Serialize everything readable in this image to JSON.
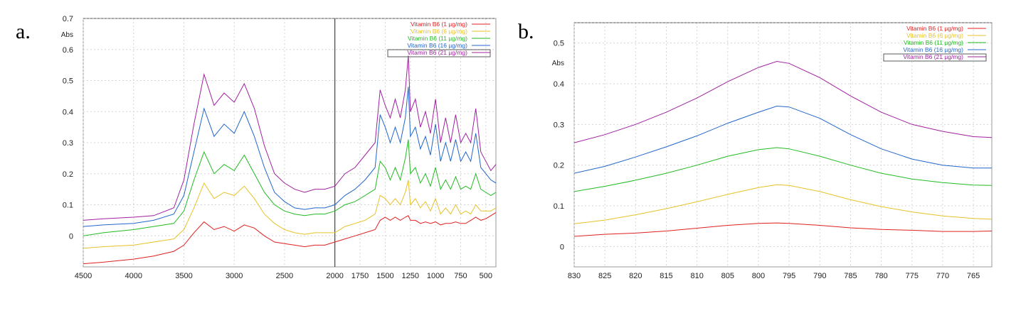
{
  "panels": [
    {
      "letter": "a."
    },
    {
      "letter": "b."
    }
  ],
  "chart_data": [
    {
      "type": "line",
      "ylabel": "Abs",
      "xlim": [
        4500,
        400
      ],
      "ylim": [
        -0.1,
        0.7
      ],
      "xticks": [
        4500,
        4000,
        3500,
        3000,
        2500,
        2000,
        1750,
        1500,
        1250,
        1000,
        750,
        500
      ],
      "yticks": [
        0,
        0.1,
        0.2,
        0.3,
        0.4,
        0.5,
        0.6,
        0.7
      ],
      "x_axis_break": 2000,
      "grid": true,
      "legend_position": "top-right",
      "series": [
        {
          "name": "Vitamin B6 (1 µg/mg)",
          "color": "#e02020",
          "x": [
            4500,
            4300,
            4000,
            3800,
            3600,
            3500,
            3400,
            3300,
            3200,
            3100,
            3000,
            2900,
            2800,
            2700,
            2600,
            2500,
            2400,
            2300,
            2200,
            2100,
            2000,
            1900,
            1800,
            1700,
            1600,
            1550,
            1500,
            1450,
            1400,
            1350,
            1300,
            1270,
            1250,
            1200,
            1150,
            1100,
            1050,
            1000,
            950,
            900,
            850,
            800,
            750,
            700,
            650,
            600,
            550,
            500,
            450,
            400
          ],
          "y": [
            -0.09,
            -0.085,
            -0.075,
            -0.065,
            -0.05,
            -0.03,
            0.01,
            0.045,
            0.02,
            0.03,
            0.015,
            0.035,
            0.025,
            0.0,
            -0.02,
            -0.025,
            -0.03,
            -0.035,
            -0.03,
            -0.03,
            -0.02,
            -0.01,
            0.0,
            0.01,
            0.02,
            0.05,
            0.06,
            0.05,
            0.06,
            0.05,
            0.06,
            0.065,
            0.05,
            0.05,
            0.04,
            0.045,
            0.04,
            0.045,
            0.035,
            0.04,
            0.04,
            0.045,
            0.04,
            0.04,
            0.05,
            0.06,
            0.05,
            0.055,
            0.065,
            0.075
          ]
        },
        {
          "name": "Vitamin B6 (6 µg/mg)",
          "color": "#e6c229",
          "x": [
            4500,
            4300,
            4000,
            3800,
            3600,
            3500,
            3400,
            3300,
            3200,
            3100,
            3000,
            2900,
            2800,
            2700,
            2600,
            2500,
            2400,
            2300,
            2200,
            2100,
            2000,
            1900,
            1800,
            1700,
            1600,
            1550,
            1500,
            1450,
            1400,
            1350,
            1300,
            1270,
            1250,
            1200,
            1150,
            1100,
            1050,
            1000,
            950,
            900,
            850,
            800,
            750,
            700,
            650,
            600,
            550,
            500,
            450,
            400
          ],
          "y": [
            -0.04,
            -0.035,
            -0.03,
            -0.02,
            -0.01,
            0.02,
            0.09,
            0.17,
            0.12,
            0.14,
            0.13,
            0.16,
            0.12,
            0.07,
            0.04,
            0.02,
            0.01,
            0.005,
            0.01,
            0.01,
            0.01,
            0.03,
            0.04,
            0.05,
            0.07,
            0.13,
            0.12,
            0.1,
            0.12,
            0.1,
            0.14,
            0.18,
            0.1,
            0.12,
            0.09,
            0.11,
            0.08,
            0.12,
            0.07,
            0.09,
            0.07,
            0.1,
            0.07,
            0.08,
            0.07,
            0.1,
            0.08,
            0.08,
            0.08,
            0.09
          ]
        },
        {
          "name": "Vitamin B6 (11 µg/mg)",
          "color": "#22bb22",
          "x": [
            4500,
            4300,
            4000,
            3800,
            3600,
            3500,
            3400,
            3300,
            3200,
            3100,
            3000,
            2900,
            2800,
            2700,
            2600,
            2500,
            2400,
            2300,
            2200,
            2100,
            2000,
            1900,
            1800,
            1700,
            1600,
            1550,
            1500,
            1450,
            1400,
            1350,
            1300,
            1270,
            1250,
            1200,
            1150,
            1100,
            1050,
            1000,
            950,
            900,
            850,
            800,
            750,
            700,
            650,
            600,
            550,
            500,
            450,
            400
          ],
          "y": [
            0.0,
            0.01,
            0.02,
            0.03,
            0.04,
            0.08,
            0.18,
            0.27,
            0.2,
            0.23,
            0.21,
            0.26,
            0.2,
            0.14,
            0.1,
            0.08,
            0.07,
            0.065,
            0.07,
            0.07,
            0.08,
            0.1,
            0.11,
            0.13,
            0.15,
            0.24,
            0.22,
            0.18,
            0.22,
            0.18,
            0.25,
            0.31,
            0.2,
            0.22,
            0.17,
            0.2,
            0.16,
            0.22,
            0.15,
            0.18,
            0.15,
            0.19,
            0.15,
            0.16,
            0.15,
            0.2,
            0.15,
            0.14,
            0.13,
            0.14
          ]
        },
        {
          "name": "Vitamin B6 (16 µg/mg)",
          "color": "#2266cc",
          "x": [
            4500,
            4300,
            4000,
            3800,
            3600,
            3500,
            3400,
            3300,
            3200,
            3100,
            3000,
            2900,
            2800,
            2700,
            2600,
            2500,
            2400,
            2300,
            2200,
            2100,
            2000,
            1900,
            1800,
            1700,
            1600,
            1550,
            1500,
            1450,
            1400,
            1350,
            1300,
            1270,
            1250,
            1200,
            1150,
            1100,
            1050,
            1000,
            950,
            900,
            850,
            800,
            750,
            700,
            650,
            600,
            550,
            500,
            450,
            400
          ],
          "y": [
            0.03,
            0.035,
            0.04,
            0.05,
            0.07,
            0.13,
            0.27,
            0.41,
            0.32,
            0.36,
            0.33,
            0.4,
            0.32,
            0.22,
            0.14,
            0.11,
            0.09,
            0.085,
            0.09,
            0.09,
            0.1,
            0.13,
            0.15,
            0.18,
            0.22,
            0.39,
            0.35,
            0.3,
            0.35,
            0.3,
            0.38,
            0.48,
            0.32,
            0.35,
            0.28,
            0.32,
            0.26,
            0.36,
            0.24,
            0.3,
            0.24,
            0.31,
            0.24,
            0.27,
            0.24,
            0.33,
            0.22,
            0.2,
            0.18,
            0.17
          ]
        },
        {
          "name": "Vitamin B6 (21 µg/mg)",
          "color": "#a020a0",
          "x": [
            4500,
            4300,
            4000,
            3800,
            3600,
            3500,
            3400,
            3300,
            3200,
            3100,
            3000,
            2900,
            2800,
            2700,
            2600,
            2500,
            2400,
            2300,
            2200,
            2100,
            2000,
            1900,
            1800,
            1700,
            1600,
            1550,
            1500,
            1450,
            1400,
            1350,
            1300,
            1270,
            1250,
            1200,
            1150,
            1100,
            1050,
            1000,
            950,
            900,
            850,
            800,
            750,
            700,
            650,
            600,
            550,
            500,
            450,
            400
          ],
          "y": [
            0.05,
            0.055,
            0.06,
            0.065,
            0.09,
            0.18,
            0.36,
            0.52,
            0.42,
            0.46,
            0.43,
            0.49,
            0.41,
            0.29,
            0.2,
            0.17,
            0.15,
            0.14,
            0.15,
            0.15,
            0.16,
            0.2,
            0.22,
            0.26,
            0.3,
            0.47,
            0.42,
            0.38,
            0.44,
            0.38,
            0.47,
            0.58,
            0.4,
            0.44,
            0.35,
            0.4,
            0.33,
            0.44,
            0.3,
            0.38,
            0.3,
            0.39,
            0.3,
            0.33,
            0.3,
            0.41,
            0.27,
            0.24,
            0.21,
            0.23
          ]
        }
      ]
    },
    {
      "type": "line",
      "ylabel": "Abs",
      "xlim": [
        830,
        762
      ],
      "ylim": [
        -0.05,
        0.55
      ],
      "xticks": [
        830,
        825,
        820,
        815,
        810,
        805,
        800,
        795,
        790,
        785,
        780,
        775,
        770,
        765
      ],
      "yticks": [
        0,
        0.1,
        0.2,
        0.3,
        0.4,
        0.5
      ],
      "grid": true,
      "legend_position": "top-right",
      "series": [
        {
          "name": "Vitamin B6 (1 µg/mg)",
          "color": "#e02020",
          "x": [
            830,
            825,
            820,
            815,
            810,
            805,
            800,
            797,
            795,
            790,
            785,
            780,
            775,
            770,
            765,
            762
          ],
          "y": [
            0.025,
            0.03,
            0.033,
            0.038,
            0.045,
            0.052,
            0.057,
            0.058,
            0.057,
            0.052,
            0.046,
            0.042,
            0.04,
            0.037,
            0.037,
            0.038
          ]
        },
        {
          "name": "Vitamin B6 (6 µg/mg)",
          "color": "#e6c229",
          "x": [
            830,
            825,
            820,
            815,
            810,
            805,
            800,
            797,
            795,
            790,
            785,
            780,
            775,
            770,
            765,
            762
          ],
          "y": [
            0.056,
            0.065,
            0.078,
            0.093,
            0.11,
            0.128,
            0.145,
            0.152,
            0.15,
            0.135,
            0.115,
            0.098,
            0.085,
            0.075,
            0.069,
            0.067
          ]
        },
        {
          "name": "Vitamin B6 (11 µg/mg)",
          "color": "#22bb22",
          "x": [
            830,
            825,
            820,
            815,
            810,
            805,
            800,
            797,
            795,
            790,
            785,
            780,
            775,
            770,
            765,
            762
          ],
          "y": [
            0.135,
            0.148,
            0.163,
            0.18,
            0.2,
            0.222,
            0.238,
            0.243,
            0.24,
            0.222,
            0.2,
            0.18,
            0.166,
            0.157,
            0.151,
            0.15
          ]
        },
        {
          "name": "Vitamin B6 (16 µg/mg)",
          "color": "#2266cc",
          "x": [
            830,
            825,
            820,
            815,
            810,
            805,
            800,
            797,
            795,
            790,
            785,
            780,
            775,
            770,
            765,
            762
          ],
          "y": [
            0.18,
            0.197,
            0.22,
            0.245,
            0.272,
            0.303,
            0.33,
            0.345,
            0.343,
            0.315,
            0.275,
            0.24,
            0.215,
            0.2,
            0.193,
            0.193
          ]
        },
        {
          "name": "Vitamin B6 (21 µg/mg)",
          "color": "#a020a0",
          "x": [
            830,
            825,
            820,
            815,
            810,
            805,
            800,
            797,
            795,
            790,
            785,
            780,
            775,
            770,
            765,
            762
          ],
          "y": [
            0.255,
            0.275,
            0.3,
            0.33,
            0.365,
            0.405,
            0.44,
            0.455,
            0.45,
            0.415,
            0.37,
            0.33,
            0.3,
            0.283,
            0.27,
            0.268
          ]
        }
      ]
    }
  ]
}
